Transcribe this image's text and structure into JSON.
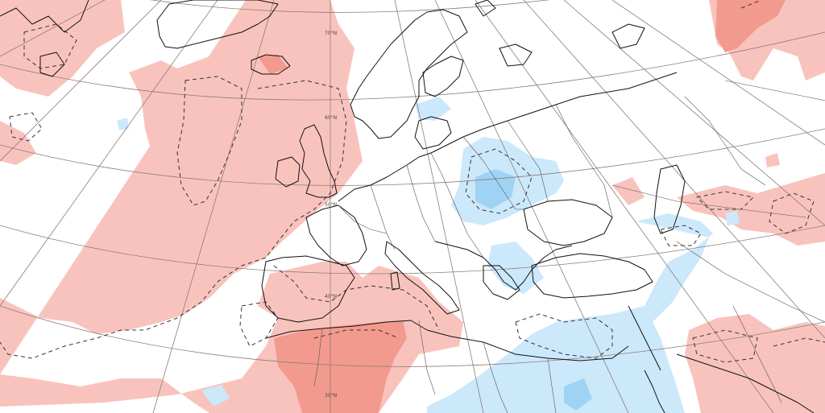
{
  "map": {
    "projection": "polar-stereographic",
    "region": "Europe / North Atlantic",
    "colors": {
      "positive_light": "#f9c3bd",
      "positive_medium": "#f39a8f",
      "negative_light": "#cce8fb",
      "negative_medium": "#9fd3f3",
      "graticule": "#8c7d78",
      "coastline": "#111111",
      "boundary": "#555555",
      "background": "#ffffff"
    },
    "latitude_labels": [
      "70°N",
      "60°N",
      "50°N",
      "40°N",
      "30°N"
    ],
    "contour_style": "dashed"
  }
}
